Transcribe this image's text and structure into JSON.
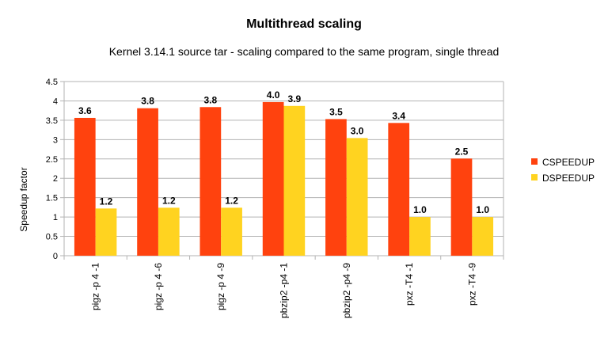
{
  "chart_data": {
    "type": "bar",
    "title": "Multithread scaling",
    "subtitle": "Kernel 3.14.1 source tar - scaling compared to the same program, single thread",
    "xlabel": "",
    "ylabel": "Speedup factor",
    "ylim": [
      0,
      4.5
    ],
    "yticks": [
      "0",
      "0.5",
      "1",
      "1.5",
      "2",
      "2.5",
      "3",
      "3.5",
      "4",
      "4.5"
    ],
    "ytick_values": [
      0,
      0.5,
      1,
      1.5,
      2,
      2.5,
      3,
      3.5,
      4,
      4.5
    ],
    "grid": true,
    "legend_position": "right",
    "categories": [
      "pigz -p 4 -1",
      "pigz -p 4 -6",
      "pigz -p 4 -9",
      "pbzip2 -p4 -1",
      "pbzip2 -p4 -9",
      "pxz -T4 -1",
      "pxz -T4 -9"
    ],
    "series": [
      {
        "name": "CSPEEDUP",
        "color": "#ff420e",
        "values": [
          3.56,
          3.81,
          3.84,
          3.97,
          3.53,
          3.43,
          2.51
        ],
        "labels": [
          "3.6",
          "3.8",
          "3.8",
          "4.0",
          "3.5",
          "3.4",
          "2.5"
        ]
      },
      {
        "name": "DSPEEDUP",
        "color": "#ffd320",
        "values": [
          1.22,
          1.24,
          1.24,
          3.87,
          3.04,
          1.0,
          1.0
        ],
        "labels": [
          "1.2",
          "1.2",
          "1.2",
          "3.9",
          "3.0",
          "1.0",
          "1.0"
        ]
      }
    ]
  }
}
